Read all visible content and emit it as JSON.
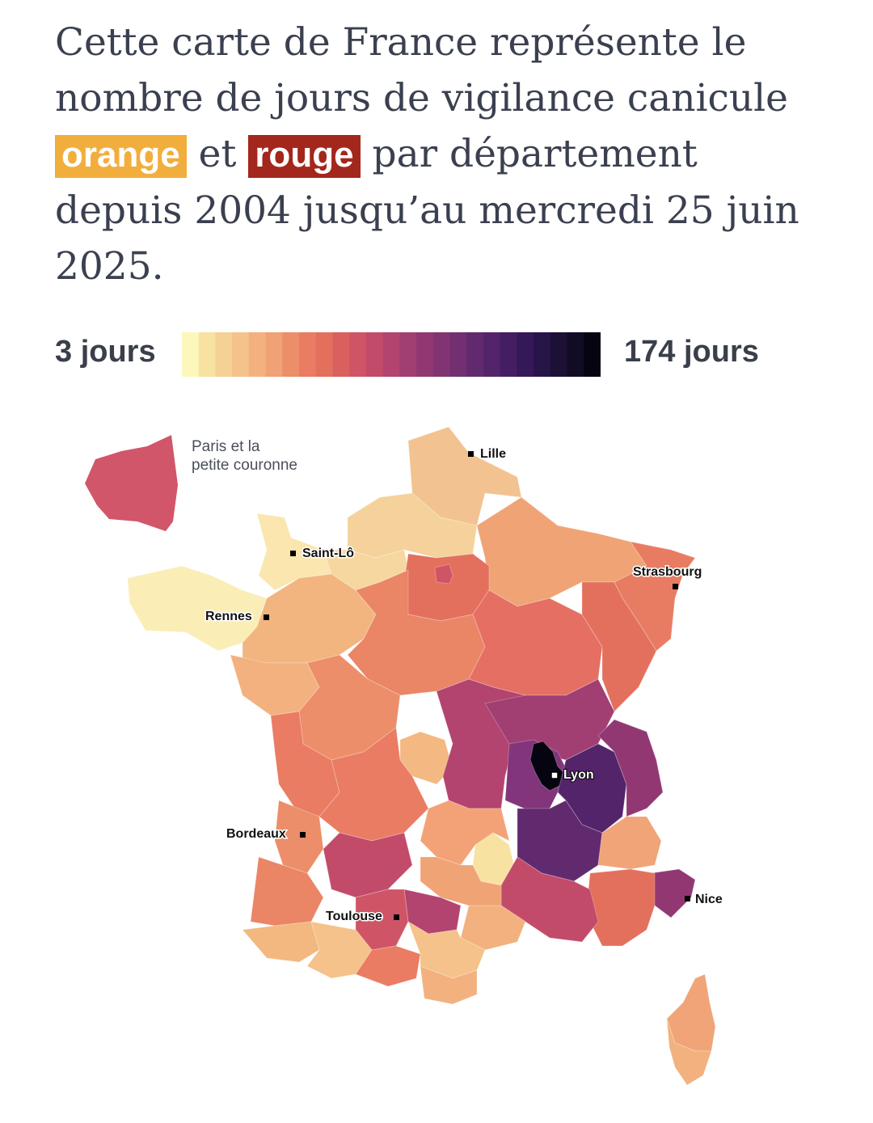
{
  "header": {
    "title_part1": "Cette carte de France représente le nombre de jours de vigilance canicule",
    "orange_label": "orange",
    "title_mid": "et",
    "red_label": "rouge",
    "title_part2": "par département depuis 2004 jusqu’au mercredi 25 juin 2025."
  },
  "legend": {
    "min_label": "3 jours",
    "max_label": "174 jours",
    "colors": [
      "#fcf8bd",
      "#f8e2a2",
      "#f5d196",
      "#f4c28a",
      "#f2b17e",
      "#f0a175",
      "#ec8e69",
      "#e97c62",
      "#e3705d",
      "#d9605e",
      "#cf5566",
      "#c24b6a",
      "#b2446f",
      "#a13e72",
      "#913872",
      "#823472",
      "#722f71",
      "#622a6e",
      "#53246a",
      "#441d63",
      "#351857",
      "#271448",
      "#1c1037",
      "#120b24",
      "#060410"
    ]
  },
  "map": {
    "inset_label_line1": "Paris et la",
    "inset_label_line2": "petite couronne",
    "inset_color": "#d1566a",
    "cities": [
      {
        "name": "Lille",
        "label": "Lille"
      },
      {
        "name": "Saint-Lo",
        "label": "Saint-Lô"
      },
      {
        "name": "Strasbourg",
        "label": "Strasbourg"
      },
      {
        "name": "Rennes",
        "label": "Rennes"
      },
      {
        "name": "Lyon",
        "label": "Lyon"
      },
      {
        "name": "Bordeaux",
        "label": "Bordeaux"
      },
      {
        "name": "Nice",
        "label": "Nice"
      },
      {
        "name": "Toulouse",
        "label": "Toulouse"
      }
    ]
  }
}
